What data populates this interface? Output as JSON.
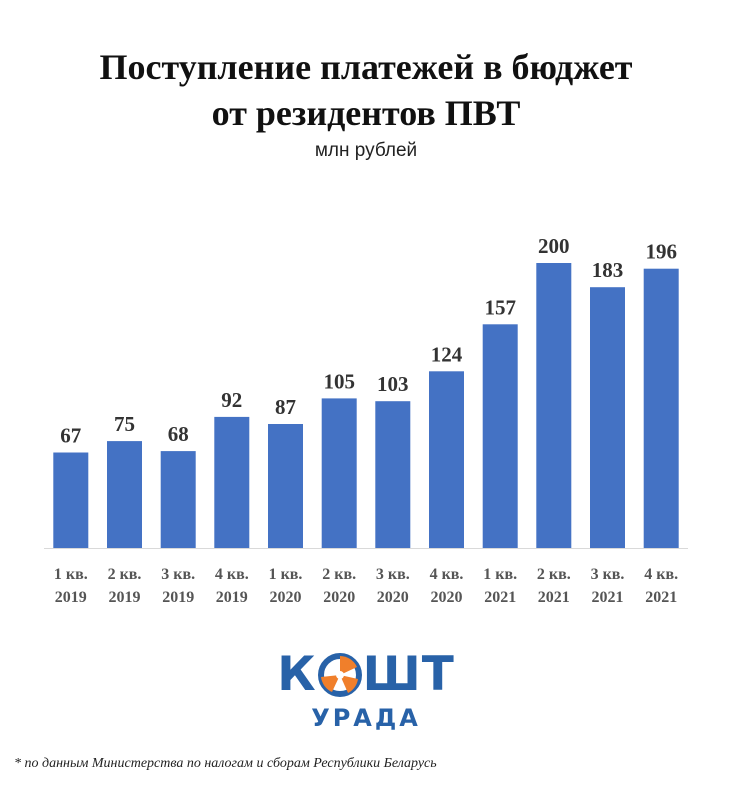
{
  "chart_data": {
    "type": "bar",
    "title_lines": [
      "Поступление платежей в бюджет",
      "от резидентов ПВТ"
    ],
    "subtitle": "млн рублей",
    "categories": [
      [
        "1 кв.",
        "2019"
      ],
      [
        "2 кв.",
        "2019"
      ],
      [
        "3 кв.",
        "2019"
      ],
      [
        "4 кв.",
        "2019"
      ],
      [
        "1 кв.",
        "2020"
      ],
      [
        "2 кв.",
        "2020"
      ],
      [
        "3 кв.",
        "2020"
      ],
      [
        "4 кв.",
        "2020"
      ],
      [
        "1 кв.",
        "2021"
      ],
      [
        "2 кв.",
        "2021"
      ],
      [
        "3 кв.",
        "2021"
      ],
      [
        "4 кв.",
        "2021"
      ]
    ],
    "values": [
      67,
      75,
      68,
      92,
      87,
      105,
      103,
      124,
      157,
      200,
      183,
      196
    ],
    "ylim": [
      0,
      200
    ],
    "grid": false,
    "bar_color": "#4472c4"
  },
  "logo": {
    "word_left": "К",
    "word_right": "ШТ",
    "sub": "УРАДА",
    "color": "#2862a8",
    "accent": "#f07f2b"
  },
  "footnote": "* по данным Министерства по налогам и сборам Республики Беларусь"
}
